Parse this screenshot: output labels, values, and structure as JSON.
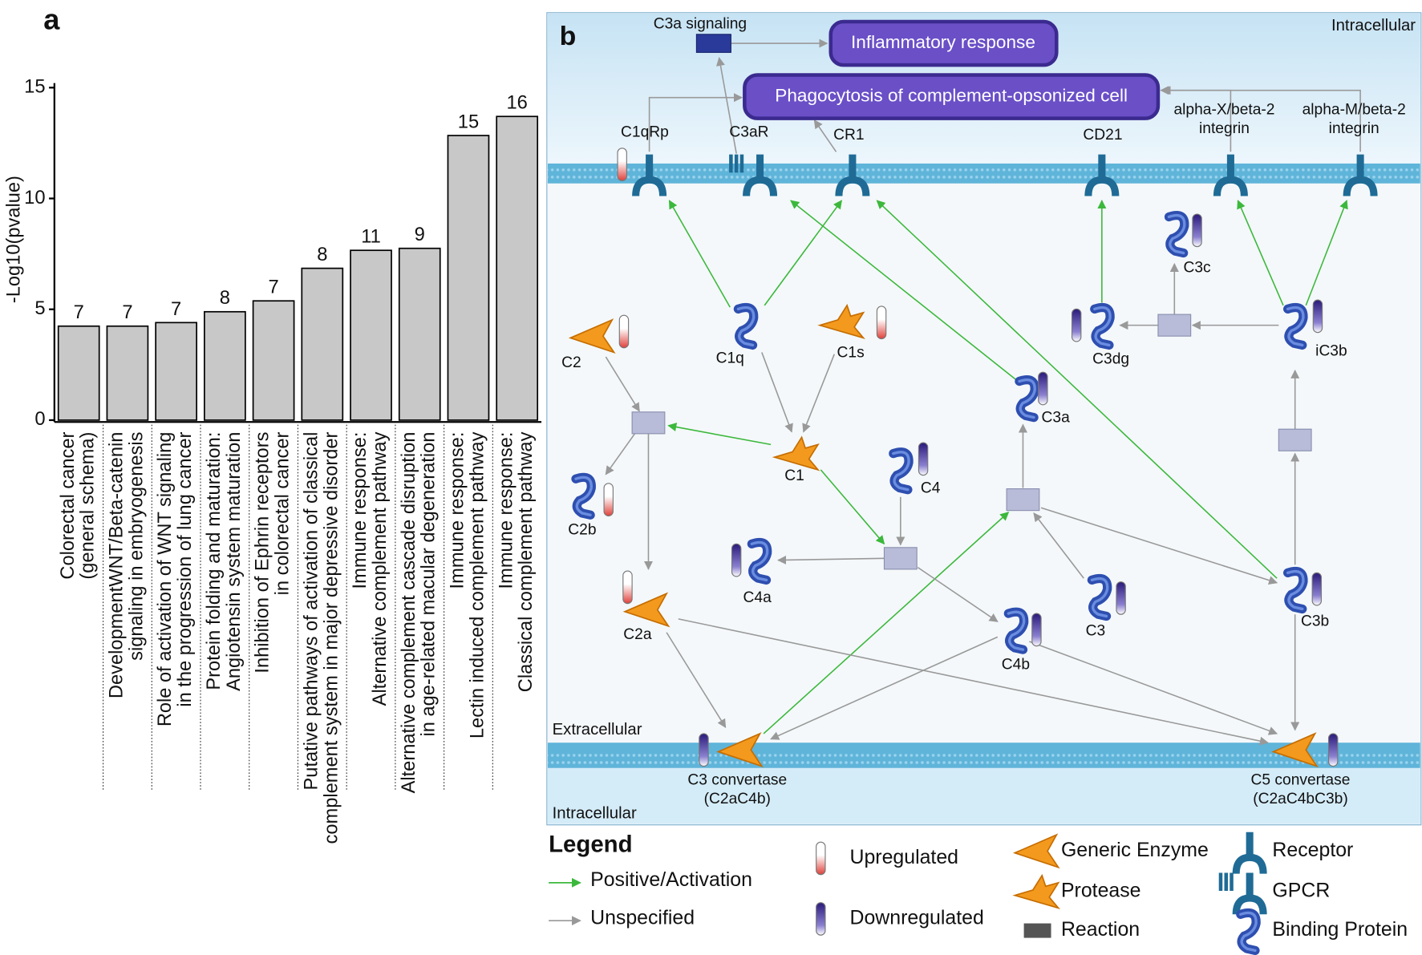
{
  "chart_data": {
    "type": "bar",
    "panel_label": "a",
    "ylabel": "-Log10(pvalue)",
    "categories": [
      "Colorectal cancer\n(general schema)",
      "DevelopmentWNT/Beta-catenin\nsignaling in embryogenesis",
      "Role of activation of WNT signaling\nin the progression of lung cancer",
      "Protein folding and maturation:\nAngiotensin system maturation",
      "Inhibition of Ephrin receptors\nin colorectal cancer",
      "Putative pathways of activation of classical\ncomplement system in major depressive disorder",
      "Immune response:\nAlternative complement pathway",
      "Alternative complement cascade disruption\nin age-related macular degeneration",
      "Immune response:\nLectin induced complement pathway",
      "Immune response:\nClassical complement pathway"
    ],
    "values": [
      4.24,
      4.24,
      4.4,
      4.89,
      5.38,
      6.85,
      7.66,
      7.75,
      12.84,
      13.7
    ],
    "counts": [
      7,
      7,
      7,
      8,
      7,
      8,
      11,
      9,
      15,
      16
    ],
    "color": "#c8c8c8",
    "ylim": [
      0,
      15
    ],
    "yticks": [
      0,
      5,
      10,
      15
    ]
  },
  "diagram": {
    "panel_label": "b",
    "compartments": {
      "top": "Intracellular",
      "extracellular": "Extracellular",
      "bottom": "Intracellular"
    },
    "processes": [
      "Inflammatory response",
      "Phagocytosis of complement-opsonized cell"
    ],
    "nodes": [
      {
        "label": "C3a signaling"
      },
      {
        "label": "C1qRp",
        "regulation": "up"
      },
      {
        "label": "C3aR"
      },
      {
        "label": "CR1"
      },
      {
        "label": "CD21"
      },
      {
        "label": "alpha-X/beta-2\nintegrin"
      },
      {
        "label": "alpha-M/beta-2\nintegrin"
      },
      {
        "label": "C3c",
        "regulation": "down"
      },
      {
        "label": "C2",
        "regulation": "up"
      },
      {
        "label": "C1q"
      },
      {
        "label": "C1s",
        "regulation": "up"
      },
      {
        "label": "C3dg",
        "regulation": "down"
      },
      {
        "label": "iC3b",
        "regulation": "down"
      },
      {
        "label": "C1"
      },
      {
        "label": "C3a",
        "regulation": "down"
      },
      {
        "label": "C4",
        "regulation": "down"
      },
      {
        "label": "C2b",
        "regulation": "up"
      },
      {
        "label": "C4a",
        "regulation": "down"
      },
      {
        "label": "C3",
        "regulation": "down"
      },
      {
        "label": "C3b",
        "regulation": "down"
      },
      {
        "label": "C2a",
        "regulation": "up"
      },
      {
        "label": "C4b",
        "regulation": "down"
      },
      {
        "label": "C3 convertase\n(C2aC4b)",
        "regulation": "down"
      },
      {
        "label": "C5 convertase\n(C2aC4bC3b)",
        "regulation": "down"
      }
    ],
    "legend": {
      "title": "Legend",
      "items": [
        "Positive/Activation",
        "Unspecified",
        "Upregulated",
        "Downregulated",
        "Generic Enzyme",
        "Protease",
        "Reaction",
        "Receptor",
        "GPCR",
        "Binding Protein"
      ]
    }
  }
}
